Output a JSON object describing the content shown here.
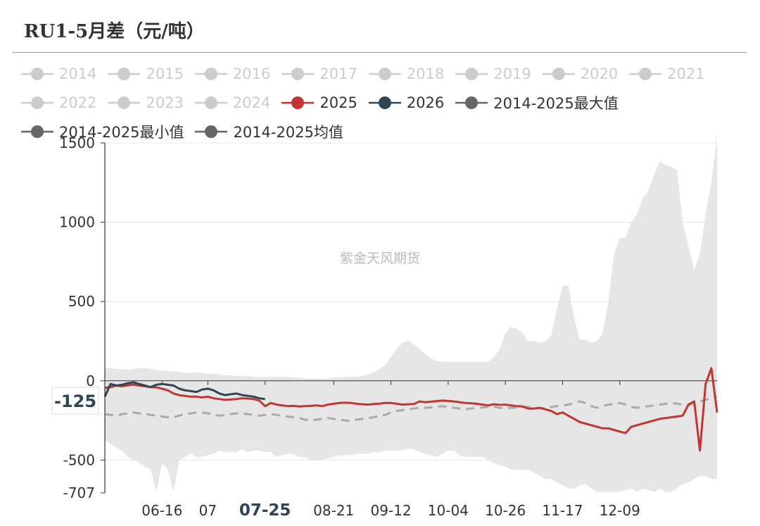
{
  "title": "RU1-5月差（元/吨）",
  "watermark": "紫金天风期货",
  "colors": {
    "inactive": "#cccccc",
    "s2025": "#c23531",
    "s2026": "#2f4554",
    "range_fill": "#e6e6e6",
    "mean_line": "#aaaaaa",
    "axis": "#333333",
    "grid": "#e6e6e6"
  },
  "legend": [
    {
      "label": "2014",
      "color": "#cccccc",
      "active": false
    },
    {
      "label": "2015",
      "color": "#cccccc",
      "active": false
    },
    {
      "label": "2016",
      "color": "#cccccc",
      "active": false
    },
    {
      "label": "2017",
      "color": "#cccccc",
      "active": false
    },
    {
      "label": "2018",
      "color": "#cccccc",
      "active": false
    },
    {
      "label": "2019",
      "color": "#cccccc",
      "active": false
    },
    {
      "label": "2020",
      "color": "#cccccc",
      "active": false
    },
    {
      "label": "2021",
      "color": "#cccccc",
      "active": false
    },
    {
      "label": "2022",
      "color": "#cccccc",
      "active": false
    },
    {
      "label": "2023",
      "color": "#cccccc",
      "active": false
    },
    {
      "label": "2024",
      "color": "#cccccc",
      "active": false
    },
    {
      "label": "2025",
      "color": "#c23531",
      "active": true
    },
    {
      "label": "2026",
      "color": "#2f4554",
      "active": true
    },
    {
      "label": "2014-2025最大值",
      "color": "#666666",
      "active": true
    },
    {
      "label": "2014-2025最小值",
      "color": "#666666",
      "active": true
    },
    {
      "label": "2014-2025均值",
      "color": "#666666",
      "active": true
    }
  ],
  "chart_data": {
    "type": "line",
    "title": "RU1-5月差（元/吨）",
    "xlabel": "",
    "ylabel": "",
    "ylim": [
      -707,
      1500
    ],
    "y_ticks": [
      1500,
      1000,
      500,
      0,
      -500,
      -707
    ],
    "x_tick_labels": [
      "06-16",
      "07",
      "07-25",
      "08-21",
      "09-12",
      "10-04",
      "10-26",
      "11-17",
      "12-09"
    ],
    "x_tick_index": [
      10,
      18,
      28,
      40,
      50,
      60,
      70,
      80,
      90
    ],
    "highlight_x_label": "07-25",
    "pointer_y_value": -125,
    "pointer_label": "-125",
    "x_count": 108,
    "series": [
      {
        "name": "2014-2025最大值",
        "kind": "band-upper",
        "values": [
          80,
          80,
          75,
          75,
          70,
          75,
          80,
          80,
          75,
          70,
          65,
          60,
          60,
          55,
          50,
          50,
          55,
          50,
          45,
          45,
          40,
          35,
          35,
          30,
          30,
          30,
          25,
          25,
          25,
          25,
          25,
          25,
          25,
          20,
          20,
          15,
          15,
          15,
          15,
          15,
          20,
          20,
          25,
          25,
          25,
          30,
          40,
          55,
          75,
          100,
          150,
          200,
          240,
          255,
          230,
          200,
          170,
          140,
          125,
          120,
          120,
          120,
          120,
          120,
          120,
          120,
          120,
          120,
          150,
          200,
          300,
          340,
          330,
          300,
          250,
          250,
          240,
          250,
          280,
          450,
          600,
          600,
          400,
          260,
          260,
          240,
          250,
          300,
          500,
          800,
          900,
          900,
          1000,
          1050,
          1150,
          1200,
          1300,
          1380,
          1360,
          1350,
          1330,
          1000,
          850,
          700,
          800,
          1050,
          1250,
          1550
        ]
      },
      {
        "name": "2014-2025最小值",
        "kind": "band-lower",
        "values": [
          -370,
          -400,
          -420,
          -440,
          -480,
          -500,
          -520,
          -540,
          -560,
          -700,
          -520,
          -560,
          -700,
          -500,
          -480,
          -460,
          -480,
          -480,
          -470,
          -460,
          -440,
          -450,
          -450,
          -450,
          -430,
          -450,
          -440,
          -440,
          -450,
          -450,
          -480,
          -470,
          -460,
          -460,
          -480,
          -480,
          -500,
          -500,
          -500,
          -490,
          -480,
          -470,
          -470,
          -470,
          -460,
          -460,
          -460,
          -450,
          -450,
          -440,
          -440,
          -440,
          -440,
          -430,
          -430,
          -450,
          -460,
          -470,
          -480,
          -460,
          -440,
          -440,
          -470,
          -480,
          -480,
          -480,
          -480,
          -500,
          -520,
          -530,
          -540,
          -560,
          -560,
          -560,
          -560,
          -580,
          -600,
          -620,
          -620,
          -640,
          -660,
          -680,
          -680,
          -660,
          -650,
          -680,
          -700,
          -700,
          -700,
          -700,
          -700,
          -690,
          -680,
          -700,
          -680,
          -690,
          -700,
          -680,
          -700,
          -700,
          -680,
          -650,
          -640,
          -620,
          -600,
          -600,
          -620,
          -620
        ]
      },
      {
        "name": "2014-2025均值",
        "kind": "dashed",
        "values": [
          -210,
          -215,
          -220,
          -210,
          -205,
          -200,
          -205,
          -210,
          -215,
          -220,
          -225,
          -230,
          -230,
          -220,
          -210,
          -205,
          -200,
          -200,
          -205,
          -215,
          -220,
          -215,
          -210,
          -205,
          -205,
          -210,
          -215,
          -220,
          -215,
          -210,
          -215,
          -220,
          -225,
          -230,
          -235,
          -245,
          -250,
          -245,
          -240,
          -235,
          -240,
          -245,
          -250,
          -255,
          -245,
          -240,
          -235,
          -230,
          -220,
          -215,
          -200,
          -190,
          -185,
          -180,
          -175,
          -170,
          -170,
          -168,
          -165,
          -160,
          -165,
          -170,
          -175,
          -180,
          -175,
          -170,
          -168,
          -165,
          -165,
          -170,
          -172,
          -170,
          -168,
          -165,
          -165,
          -170,
          -175,
          -170,
          -165,
          -160,
          -155,
          -150,
          -140,
          -130,
          -140,
          -160,
          -170,
          -160,
          -150,
          -145,
          -140,
          -150,
          -165,
          -170,
          -165,
          -160,
          -155,
          -150,
          -145,
          -140,
          -145,
          -150,
          -155,
          -140,
          -130,
          -120,
          -110,
          -100
        ]
      },
      {
        "name": "2025",
        "kind": "line",
        "values": [
          -45,
          -40,
          -30,
          -35,
          -28,
          -25,
          -30,
          -35,
          -40,
          -42,
          -50,
          -60,
          -80,
          -90,
          -95,
          -100,
          -100,
          -105,
          -100,
          -110,
          -115,
          -120,
          -118,
          -115,
          -110,
          -112,
          -115,
          -125,
          -160,
          -140,
          -150,
          -155,
          -160,
          -158,
          -162,
          -160,
          -158,
          -155,
          -160,
          -150,
          -145,
          -140,
          -138,
          -140,
          -145,
          -148,
          -150,
          -146,
          -144,
          -140,
          -140,
          -145,
          -150,
          -148,
          -146,
          -130,
          -135,
          -132,
          -128,
          -125,
          -127,
          -130,
          -135,
          -140,
          -142,
          -145,
          -150,
          -155,
          -148,
          -152,
          -150,
          -155,
          -160,
          -162,
          -175,
          -175,
          -170,
          -180,
          -190,
          -210,
          -200,
          -220,
          -240,
          -260,
          -270,
          -280,
          -290,
          -300,
          -300,
          -310,
          -320,
          -330,
          -290,
          -280,
          -270,
          -260,
          -250,
          -240,
          -235,
          -230,
          -225,
          -220,
          -150,
          -130,
          -440,
          -20,
          80,
          -200
        ]
      },
      {
        "name": "2026",
        "kind": "line",
        "values": [
          -100,
          -20,
          -30,
          -25,
          -15,
          -10,
          -20,
          -30,
          -40,
          -25,
          -20,
          -25,
          -30,
          -50,
          -60,
          -65,
          -70,
          -55,
          -50,
          -60,
          -80,
          -90,
          -85,
          -80,
          -90,
          -95,
          -100,
          -110,
          -115
        ]
      }
    ]
  }
}
